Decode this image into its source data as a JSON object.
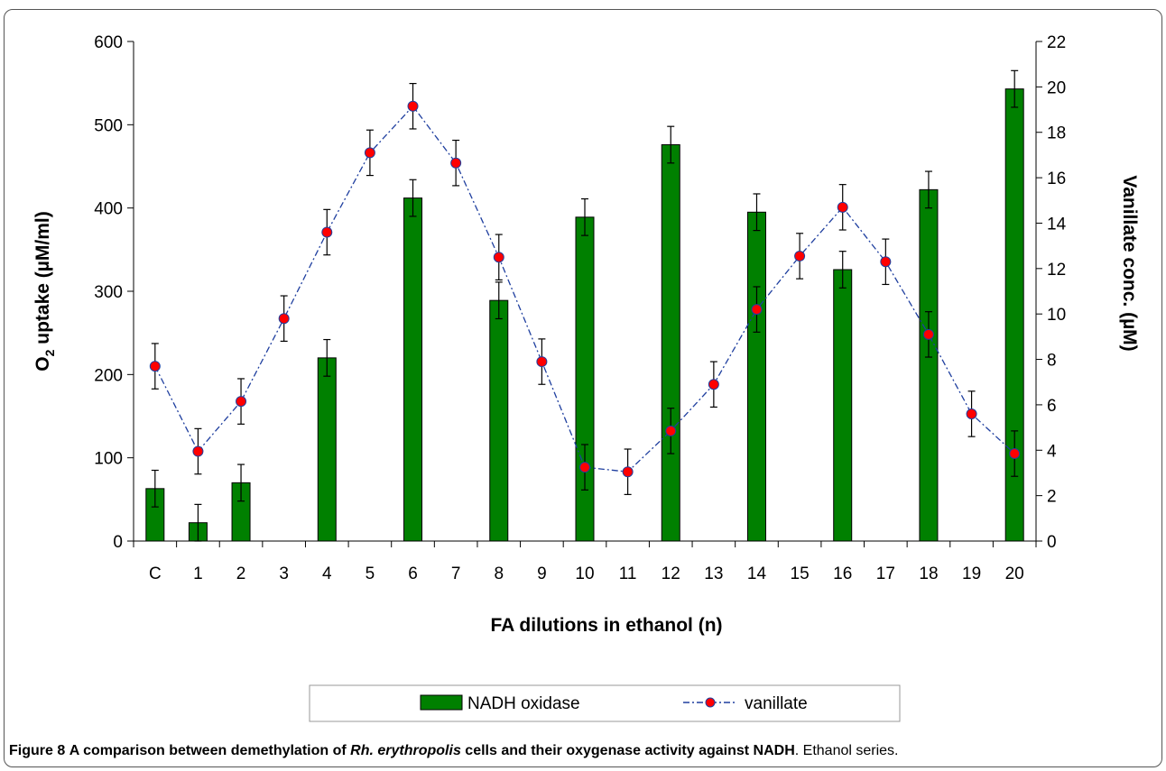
{
  "caption": {
    "label": "Figure 8",
    "title_before": "A comparison between demethylation of",
    "title_italic": "Rh. erythropolis",
    "title_after": "cells and their oxygenase activity against NADH",
    "suffix": ". Ethanol series."
  },
  "chart_data": {
    "type": "bar",
    "categories": [
      "C",
      "1",
      "2",
      "3",
      "4",
      "5",
      "6",
      "7",
      "8",
      "9",
      "10",
      "11",
      "12",
      "13",
      "14",
      "15",
      "16",
      "17",
      "18",
      "19",
      "20"
    ],
    "xlabel": "FA dilutions in ethanol (n)",
    "ylabel_left": {
      "main": "O",
      "sub": "2",
      "rest": " uptake (µM/ml)"
    },
    "ylabel_right": "Vanillate conc. (µM)",
    "ylim_left": [
      0,
      600
    ],
    "yticks_left": [
      0,
      100,
      200,
      300,
      400,
      500,
      600
    ],
    "ylim_right": [
      0,
      22
    ],
    "yticks_right": [
      0,
      2,
      4,
      6,
      8,
      10,
      12,
      14,
      16,
      18,
      20,
      22
    ],
    "grid": false,
    "legend_position": "bottom",
    "series": [
      {
        "name": "NADH oxidase",
        "type": "bar",
        "axis": "left",
        "color": "#008000",
        "values": [
          63,
          22,
          70,
          null,
          220,
          null,
          412,
          null,
          289,
          null,
          389,
          null,
          476,
          null,
          395,
          null,
          326,
          null,
          422,
          null,
          543
        ],
        "error": [
          22,
          22,
          22,
          null,
          22,
          null,
          22,
          null,
          22,
          null,
          22,
          null,
          22,
          null,
          22,
          null,
          22,
          null,
          22,
          null,
          22
        ]
      },
      {
        "name": "vanillate",
        "type": "line",
        "axis": "right",
        "line_color": "#1f3f9f",
        "marker_color": "#ff0000",
        "values": [
          7.7,
          3.95,
          6.15,
          9.8,
          13.6,
          17.1,
          19.15,
          16.65,
          12.5,
          7.9,
          3.25,
          3.05,
          4.85,
          6.9,
          10.2,
          12.55,
          14.7,
          12.3,
          9.1,
          5.6,
          3.85
        ],
        "error": [
          1.0,
          1.0,
          1.0,
          1.0,
          1.0,
          1.0,
          1.0,
          1.0,
          1.0,
          1.0,
          1.0,
          1.0,
          1.0,
          1.0,
          1.0,
          1.0,
          1.0,
          1.0,
          1.0,
          1.0,
          1.0
        ]
      }
    ]
  }
}
